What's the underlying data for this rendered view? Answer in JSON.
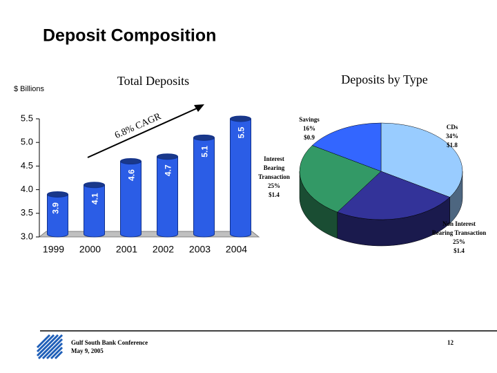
{
  "title": "Deposit Composition",
  "footer": {
    "line1": "Gulf South Bank Conference",
    "line2": "May 9, 2005",
    "page": "12"
  },
  "chart_data": [
    {
      "type": "bar",
      "title": "Total Deposits",
      "y_axis_label": "$ Billions",
      "categories": [
        "1999",
        "2000",
        "2001",
        "2002",
        "2003",
        "2004"
      ],
      "values": [
        3.9,
        4.1,
        4.6,
        4.7,
        5.1,
        5.5
      ],
      "color": "#2b5de6",
      "ylim": [
        3.0,
        5.5
      ],
      "yticks": [
        {
          "value": 3,
          "label": "3.0"
        },
        3.5,
        {
          "value": 4,
          "label": "4.0"
        },
        4.5,
        {
          "value": 5,
          "label": "5.0"
        },
        5.5
      ],
      "annotation": "6.8% CAGR"
    },
    {
      "type": "pie",
      "title": "Deposits by Type",
      "categories": [
        "CDs",
        "Non Interest Bearing Transaction",
        "Interest Bearing Transaction",
        "Savings"
      ],
      "values": [
        34,
        25,
        25,
        16
      ],
      "value_labels": [
        "34%",
        "25%",
        "25%",
        "16%"
      ],
      "amount_labels": [
        "$1.8",
        "$1.4",
        "$1.4",
        "$0.9"
      ],
      "colors": [
        "#99ccff",
        "#333399",
        "#339966",
        "#3366ff"
      ]
    }
  ]
}
